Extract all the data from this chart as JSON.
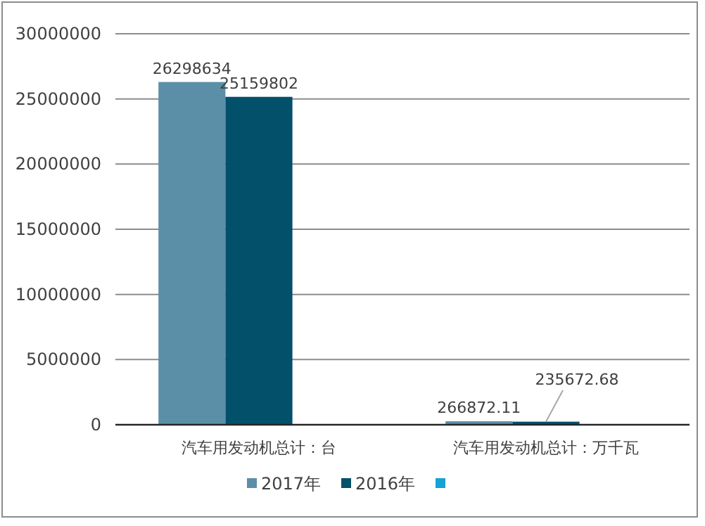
{
  "chart_data": {
    "type": "bar",
    "categories": [
      "汽车用发动机总计：台",
      "汽车用发动机总计：万千瓦"
    ],
    "series": [
      {
        "name": "2017年",
        "color": "#5b8fa8",
        "values": [
          26298634,
          266872.11
        ]
      },
      {
        "name": "2016年",
        "color": "#03506b",
        "values": [
          25159802,
          235672.68
        ]
      },
      {
        "color": "#17a2d6",
        "values": [
          null,
          null
        ]
      }
    ],
    "ylim": [
      0,
      30000000
    ],
    "yticks": [
      0,
      5000000,
      10000000,
      15000000,
      20000000,
      25000000,
      30000000
    ],
    "grid": "y",
    "legend": "bottom",
    "data_labels": true
  }
}
